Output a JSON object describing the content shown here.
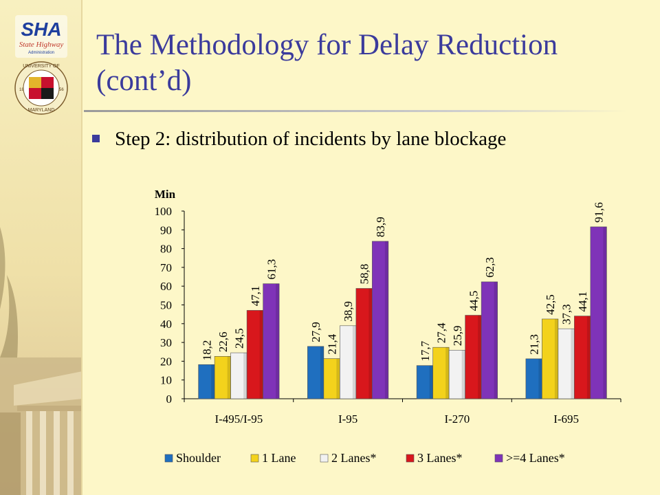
{
  "slide": {
    "title": "The Methodology for Delay Reduction (cont’d)",
    "bullet": "Step 2: distribution of incidents by lane blockage",
    "logo_sha": "SHA State Highway Administration",
    "logo_umd": "University of Maryland 1856"
  },
  "colors": {
    "background": "#fdf7c8",
    "title": "#3b3b9c",
    "bullet": "#3b3b9c"
  },
  "chart_data": {
    "type": "bar",
    "ylabel": "Min",
    "ylim": [
      0,
      100
    ],
    "yticks": [
      0,
      10,
      20,
      30,
      40,
      50,
      60,
      70,
      80,
      90,
      100
    ],
    "categories": [
      "I-495/I-95",
      "I-95",
      "I-270",
      "I-695"
    ],
    "series": [
      {
        "name": "Shoulder",
        "color": "#1f6fbf",
        "values": [
          18.2,
          27.9,
          17.7,
          21.3
        ],
        "labels": [
          "18,2",
          "27,9",
          "17,7",
          "21,3"
        ]
      },
      {
        "name": "1 Lane",
        "color": "#f3d21c",
        "values": [
          22.6,
          21.4,
          27.4,
          42.5
        ],
        "labels": [
          "22,6",
          "21,4",
          "27,4",
          "42,5"
        ]
      },
      {
        "name": "2 Lanes*",
        "color": "#f2f2f2",
        "values": [
          24.5,
          38.9,
          25.9,
          37.3
        ],
        "labels": [
          "24,5",
          "38,9",
          "25,9",
          "37,3"
        ]
      },
      {
        "name": "3 Lanes*",
        "color": "#d8171c",
        "values": [
          47.1,
          58.8,
          44.5,
          44.1
        ],
        "labels": [
          "47,1",
          "58,8",
          "44,5",
          "44,1"
        ]
      },
      {
        "name": ">=4 Lanes*",
        "color": "#7f33b8",
        "values": [
          61.3,
          83.9,
          62.3,
          91.6
        ],
        "labels": [
          "61,3",
          "83,9",
          "62,3",
          "91,6"
        ]
      }
    ],
    "grid": false,
    "legend": "bottom"
  }
}
